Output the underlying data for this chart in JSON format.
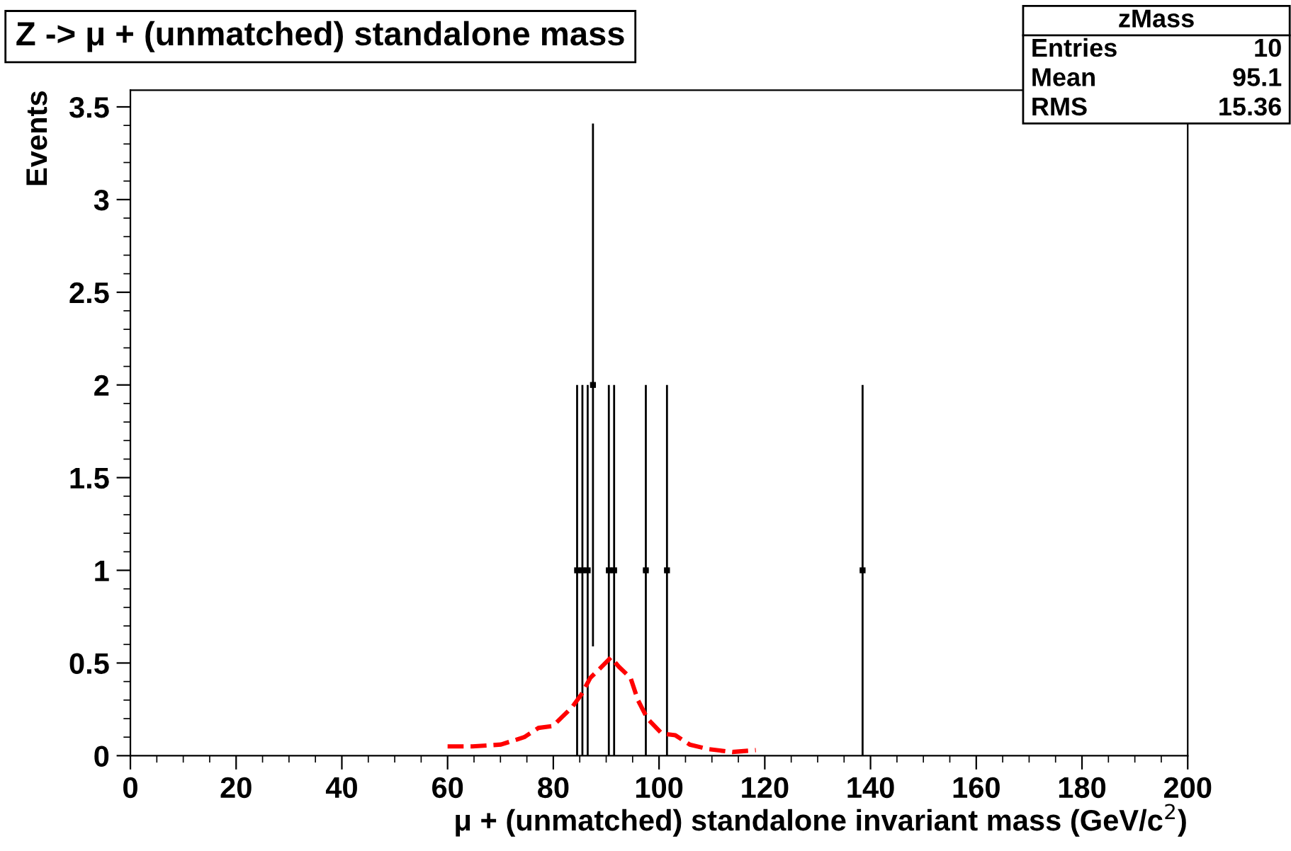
{
  "chart_data": {
    "type": "line",
    "title": "Z -> μ + (unmatched) standalone mass",
    "xlabel": "μ + (unmatched) standalone invariant mass (GeV/c$^{2}$)",
    "ylabel": "Events",
    "annotations": [
      "zMass",
      "Entries",
      "10",
      "Mean",
      "95.1",
      "RMS",
      "15.36"
    ],
    "xlim": [
      0,
      200
    ],
    "xticks": [
      0,
      20,
      40,
      60,
      80,
      100,
      120,
      140,
      160,
      180,
      200
    ],
    "ylim": [
      0,
      3.59
    ],
    "yticks": [
      0,
      0.5,
      1,
      1.5,
      2,
      2.5,
      3,
      3.5
    ],
    "grid": false,
    "legend": false,
    "marker": "square",
    "series": [
      {
        "type": "scatter",
        "color": "#000000",
        "x": [
          84.5,
          85.5,
          86.5,
          87.5,
          90.5,
          91.5,
          97.5,
          101.5,
          138.5
        ],
        "values": [
          1,
          1,
          1,
          2,
          1,
          1,
          1,
          1,
          1
        ],
        "errors": [
          1,
          1,
          1,
          1.41,
          1,
          1,
          1,
          1,
          1
        ],
        "xerrors": [
          0.5,
          0.5,
          0.5,
          0.5,
          0.5,
          0.5,
          0.5,
          0.5,
          0.5
        ]
      },
      {
        "color": "#ff0000",
        "marker": "none",
        "line_style": "dashed",
        "x": [
          60,
          64.7,
          70.1,
          74.5,
          77.2,
          79.9,
          81.7,
          83.5,
          85.3,
          87.0,
          88.8,
          90.9,
          92.4,
          94.6,
          96.0,
          97.8,
          100.5,
          103.1,
          105.8,
          109.4,
          113.9,
          118.3
        ],
        "values": [
          0.05,
          0.05,
          0.06,
          0.1,
          0.15,
          0.16,
          0.21,
          0.26,
          0.33,
          0.42,
          0.47,
          0.53,
          0.48,
          0.42,
          0.3,
          0.2,
          0.12,
          0.11,
          0.06,
          0.035,
          0.02,
          0.03
        ]
      }
    ]
  }
}
